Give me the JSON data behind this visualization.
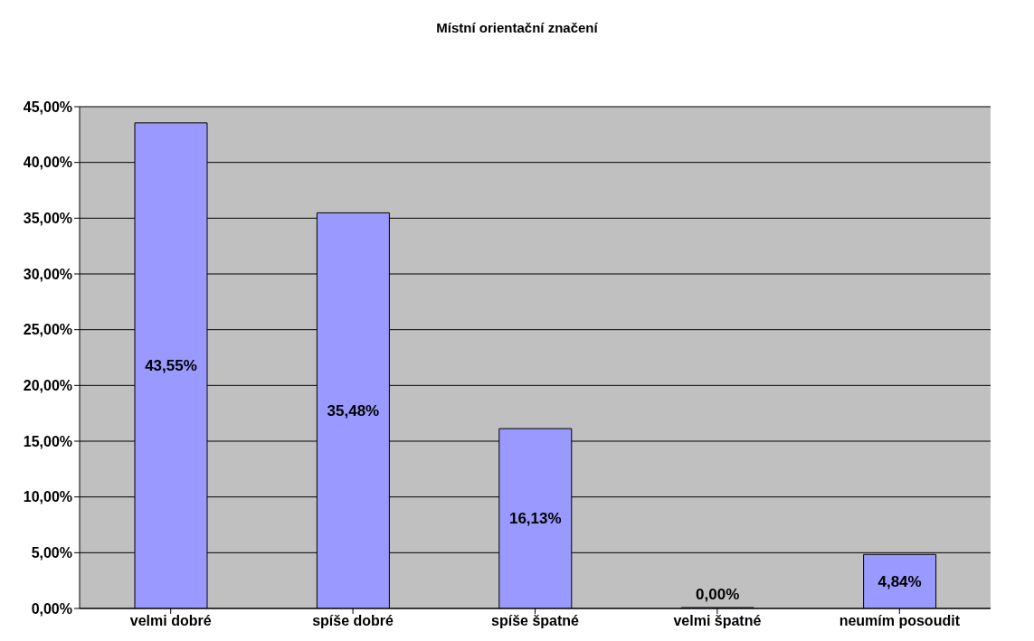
{
  "chart_data": {
    "type": "bar",
    "title": "Místní orientační značení",
    "categories": [
      "velmi dobré",
      "spíše dobré",
      "spíše špatné",
      "velmi špatné",
      "neumím posoudit"
    ],
    "values": [
      43.55,
      35.48,
      16.13,
      0.0,
      4.84
    ],
    "value_labels": [
      "43,55%",
      "35,48%",
      "16,13%",
      "0,00%",
      "4,84%"
    ],
    "color": "#9999ff",
    "ylim": [
      0,
      45
    ],
    "yticks": [
      {
        "value": 0,
        "label": "0,00%"
      },
      {
        "value": 5,
        "label": "5,00%"
      },
      {
        "value": 10,
        "label": "10,00%"
      },
      {
        "value": 15,
        "label": "15,00%"
      },
      {
        "value": 20,
        "label": "20,00%"
      },
      {
        "value": 25,
        "label": "25,00%"
      },
      {
        "value": 30,
        "label": "30,00%"
      },
      {
        "value": 35,
        "label": "35,00%"
      },
      {
        "value": 40,
        "label": "40,00%"
      },
      {
        "value": 45,
        "label": "45,00%"
      }
    ],
    "grid": "y",
    "legend": false
  }
}
